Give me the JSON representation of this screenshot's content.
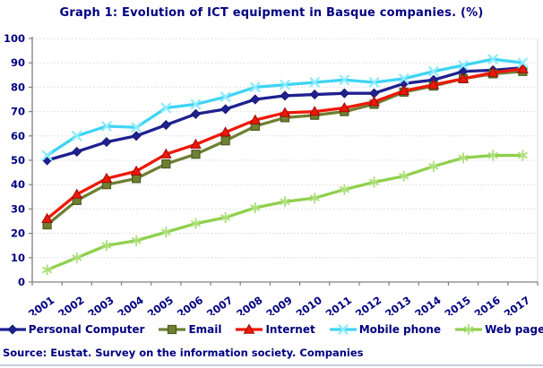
{
  "title": "Graph 1: Evolution of ICT equipment in Basque companies. (%)",
  "source": "Source: Eustat. Survey on the information society. Companies",
  "colors": {
    "title_text": "#000080",
    "axis_text": "#000080",
    "axis_line": "#808080",
    "gridline": "#d8d8d8",
    "plot_right_border": "#d4d4d4",
    "background": "#ffffff",
    "bottom_edge": "#c3cfdd"
  },
  "chart_data": {
    "type": "line",
    "title": "Graph 1: Evolution of ICT equipment in Basque companies. (%)",
    "xlabel": "",
    "ylabel": "",
    "ylim": [
      0,
      100
    ],
    "yticks": [
      0,
      10,
      20,
      30,
      40,
      50,
      60,
      70,
      80,
      90,
      100
    ],
    "grid": "horizontal-dashed",
    "legend_position": "bottom",
    "categories": [
      "2001",
      "2002",
      "2003",
      "2004",
      "2005",
      "2006",
      "2007",
      "2008",
      "2009",
      "2010",
      "2011",
      "2012",
      "2013",
      "2014",
      "2015",
      "2016",
      "2017"
    ],
    "series": [
      {
        "name": "Personal Computer",
        "marker": "diamond",
        "color": "#1f2190",
        "marker_fill": "#1f2190",
        "marker_stroke": "#14166b",
        "values": [
          50,
          53.5,
          57.5,
          60,
          64.5,
          69,
          71,
          75,
          76.5,
          77,
          77.5,
          77.5,
          81.5,
          83,
          86.5,
          87,
          88
        ]
      },
      {
        "name": "Email",
        "marker": "square",
        "color": "#6e8033",
        "marker_fill": "#6e8033",
        "marker_stroke": "#4d5a21",
        "values": [
          23.5,
          33.5,
          40,
          42.5,
          48.5,
          52.5,
          58,
          64,
          67.5,
          68.5,
          70,
          73,
          78,
          80.5,
          83.5,
          85.5,
          86.5
        ]
      },
      {
        "name": "Internet",
        "marker": "triangle",
        "color": "#ee1808",
        "marker_fill": "#ee1808",
        "marker_stroke": "#9b0d04",
        "values": [
          26,
          36,
          42.5,
          45.5,
          52.5,
          56.5,
          61.5,
          66.5,
          69.5,
          70,
          71.5,
          74,
          78.5,
          81,
          83.5,
          86,
          87.5
        ]
      },
      {
        "name": "Mobile phone",
        "marker": "x-cross",
        "color": "#3fd4f4",
        "marker_fill": "none",
        "marker_stroke": "#8fecfb",
        "values": [
          52,
          60,
          64,
          63.5,
          71.5,
          73,
          76,
          80,
          81,
          82,
          83,
          82,
          83.5,
          86.5,
          89,
          91.5,
          90
        ]
      },
      {
        "name": "Web page",
        "marker": "asterisk",
        "color": "#8fd04c",
        "marker_fill": "none",
        "marker_stroke": "#aee07e",
        "values": [
          5,
          10,
          15,
          17,
          20.5,
          24,
          26.5,
          30.5,
          33,
          34.5,
          38,
          41,
          43.5,
          47.5,
          51,
          52,
          52
        ]
      }
    ]
  }
}
